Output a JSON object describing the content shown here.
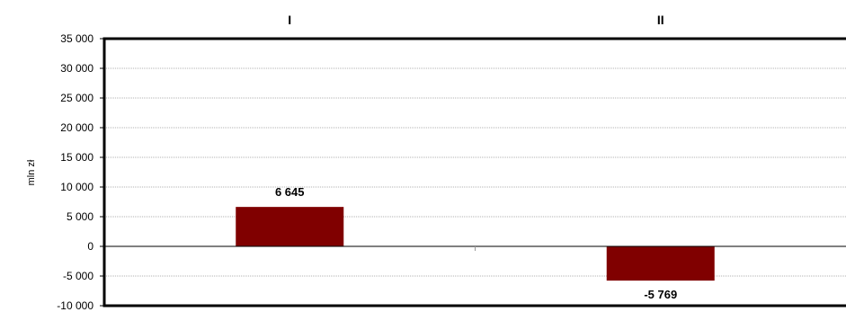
{
  "chart_data": {
    "type": "bar",
    "categories": [
      "I",
      "II"
    ],
    "values": [
      6645,
      -5769
    ],
    "value_labels": [
      "6 645",
      "-5 769"
    ],
    "ylabel": "mln zł",
    "ylim": [
      -10000,
      35000
    ],
    "yticks": [
      35000,
      30000,
      25000,
      20000,
      15000,
      10000,
      5000,
      0,
      -5000,
      -10000
    ],
    "ytick_labels": [
      "35 000",
      "30 000",
      "25 000",
      "20 000",
      "15 000",
      "10 000",
      "5 000",
      "0",
      "-5 000",
      "-10 000"
    ],
    "category_label_position": "top",
    "grid": true,
    "bar_color": "#800000"
  }
}
